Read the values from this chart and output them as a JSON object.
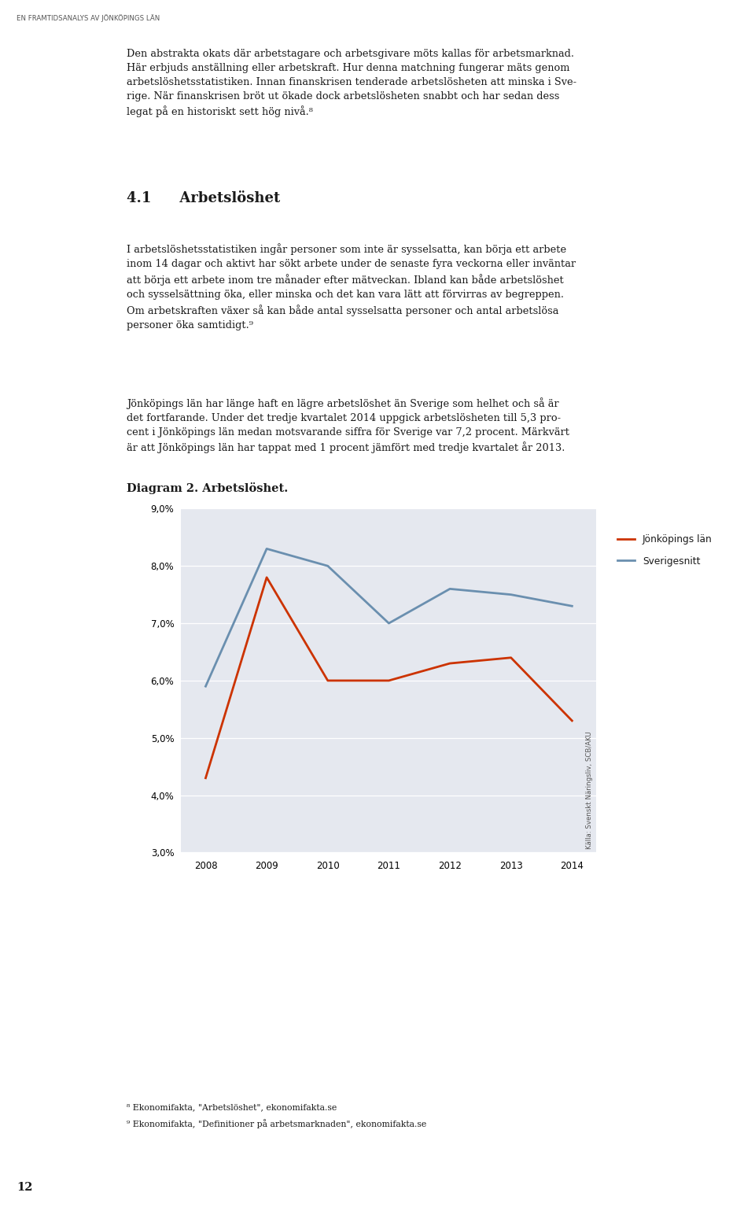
{
  "title": "Diagram 2. Arbetslöshet.",
  "years": [
    2008,
    2009,
    2010,
    2011,
    2012,
    2013,
    2014
  ],
  "jonkoping": [
    0.043,
    0.078,
    0.06,
    0.06,
    0.063,
    0.064,
    0.053
  ],
  "sverige": [
    0.059,
    0.083,
    0.08,
    0.07,
    0.076,
    0.075,
    0.073
  ],
  "jonkoping_color": "#cc3300",
  "sverige_color": "#6a8faf",
  "bg_color": "#e5e8ef",
  "line_width": 2.0,
  "ylim": [
    0.03,
    0.09
  ],
  "yticks": [
    0.03,
    0.04,
    0.05,
    0.06,
    0.07,
    0.08,
    0.09
  ],
  "legend_jonkoping": "Jönköpings län",
  "legend_sverige": "Sverigesnitt",
  "source_text": "Källa: Svenskt Näringsliv, SCB/AKU",
  "page_header": "EN FRAMTIDSANALYS AV JÖNKÖPINGS LÄN",
  "page_number": "12",
  "footnote_8": "Ekonomifakta, \"Arbetslöshet\", ekonomifakta.se",
  "footnote_9": "Ekonomifakta, \"Definitioner på arbetsmarknaden\", ekonomifakta.se"
}
